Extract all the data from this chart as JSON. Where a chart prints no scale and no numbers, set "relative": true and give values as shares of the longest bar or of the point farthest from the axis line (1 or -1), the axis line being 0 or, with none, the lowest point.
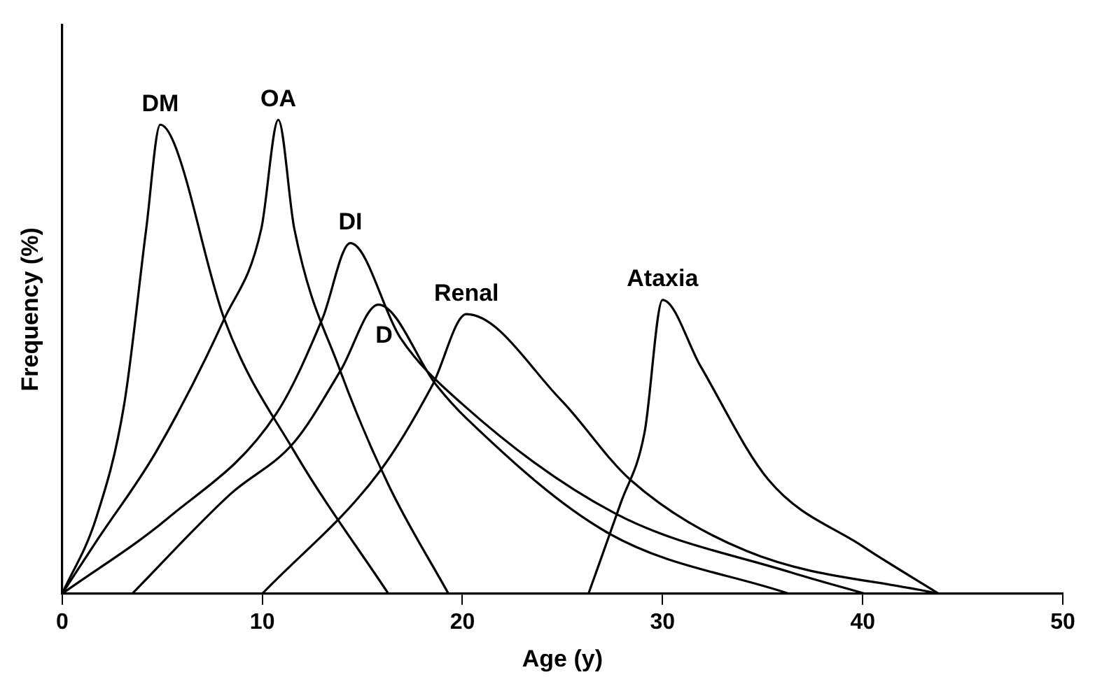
{
  "chart_data": {
    "type": "line",
    "relative": true,
    "xlabel": "Age (y)",
    "ylabel": "Frequency (%)",
    "xlim": [
      0,
      50
    ],
    "xticks": [
      0,
      10,
      20,
      30,
      40,
      50
    ],
    "grid": false,
    "legend": false,
    "marker": "none",
    "line_style": "solid",
    "series": [
      {
        "name": "DM",
        "color": "#000000",
        "x": [
          0,
          1.7,
          3.1,
          4.2,
          4.9,
          5.6,
          8.1,
          11.6,
          16.3
        ],
        "values": [
          0,
          0.16,
          0.4,
          0.77,
          0.99,
          0.95,
          0.58,
          0.3,
          0
        ]
      },
      {
        "name": "OA",
        "color": "#000000",
        "x": [
          0,
          1.7,
          4.7,
          8.1,
          9.95,
          10.8,
          11.6,
          13.9,
          16.3,
          19.3
        ],
        "values": [
          0,
          0.11,
          0.3,
          0.58,
          0.77,
          1,
          0.77,
          0.47,
          0.23,
          0
        ]
      },
      {
        "name": "DI",
        "color": "#000000",
        "x": [
          0,
          5.3,
          10.7,
          13,
          14.4,
          16.9,
          20,
          27.6,
          36.4,
          40.1
        ],
        "values": [
          0,
          0.16,
          0.38,
          0.58,
          0.74,
          0.54,
          0.4,
          0.17,
          0.045,
          0
        ]
      },
      {
        "name": "D",
        "color": "#000000",
        "x": [
          3.5,
          8.4,
          11.6,
          13.9,
          15.8,
          18.7,
          20.2,
          27.2,
          36.3
        ],
        "values": [
          0,
          0.21,
          0.32,
          0.47,
          0.61,
          0.44,
          0.37,
          0.13,
          0
        ]
      },
      {
        "name": "Renal",
        "color": "#000000",
        "x": [
          10,
          15.9,
          18.5,
          20.2,
          24.9,
          28.4,
          34.2,
          43.8
        ],
        "values": [
          0,
          0.26,
          0.44,
          0.59,
          0.41,
          0.24,
          0.09,
          0
        ]
      },
      {
        "name": "Ataxia",
        "color": "#000000",
        "x": [
          26.3,
          27.9,
          29.1,
          30,
          31.9,
          35.3,
          40,
          43.8
        ],
        "values": [
          0,
          0.19,
          0.34,
          0.62,
          0.48,
          0.24,
          0.1,
          0
        ]
      }
    ]
  }
}
